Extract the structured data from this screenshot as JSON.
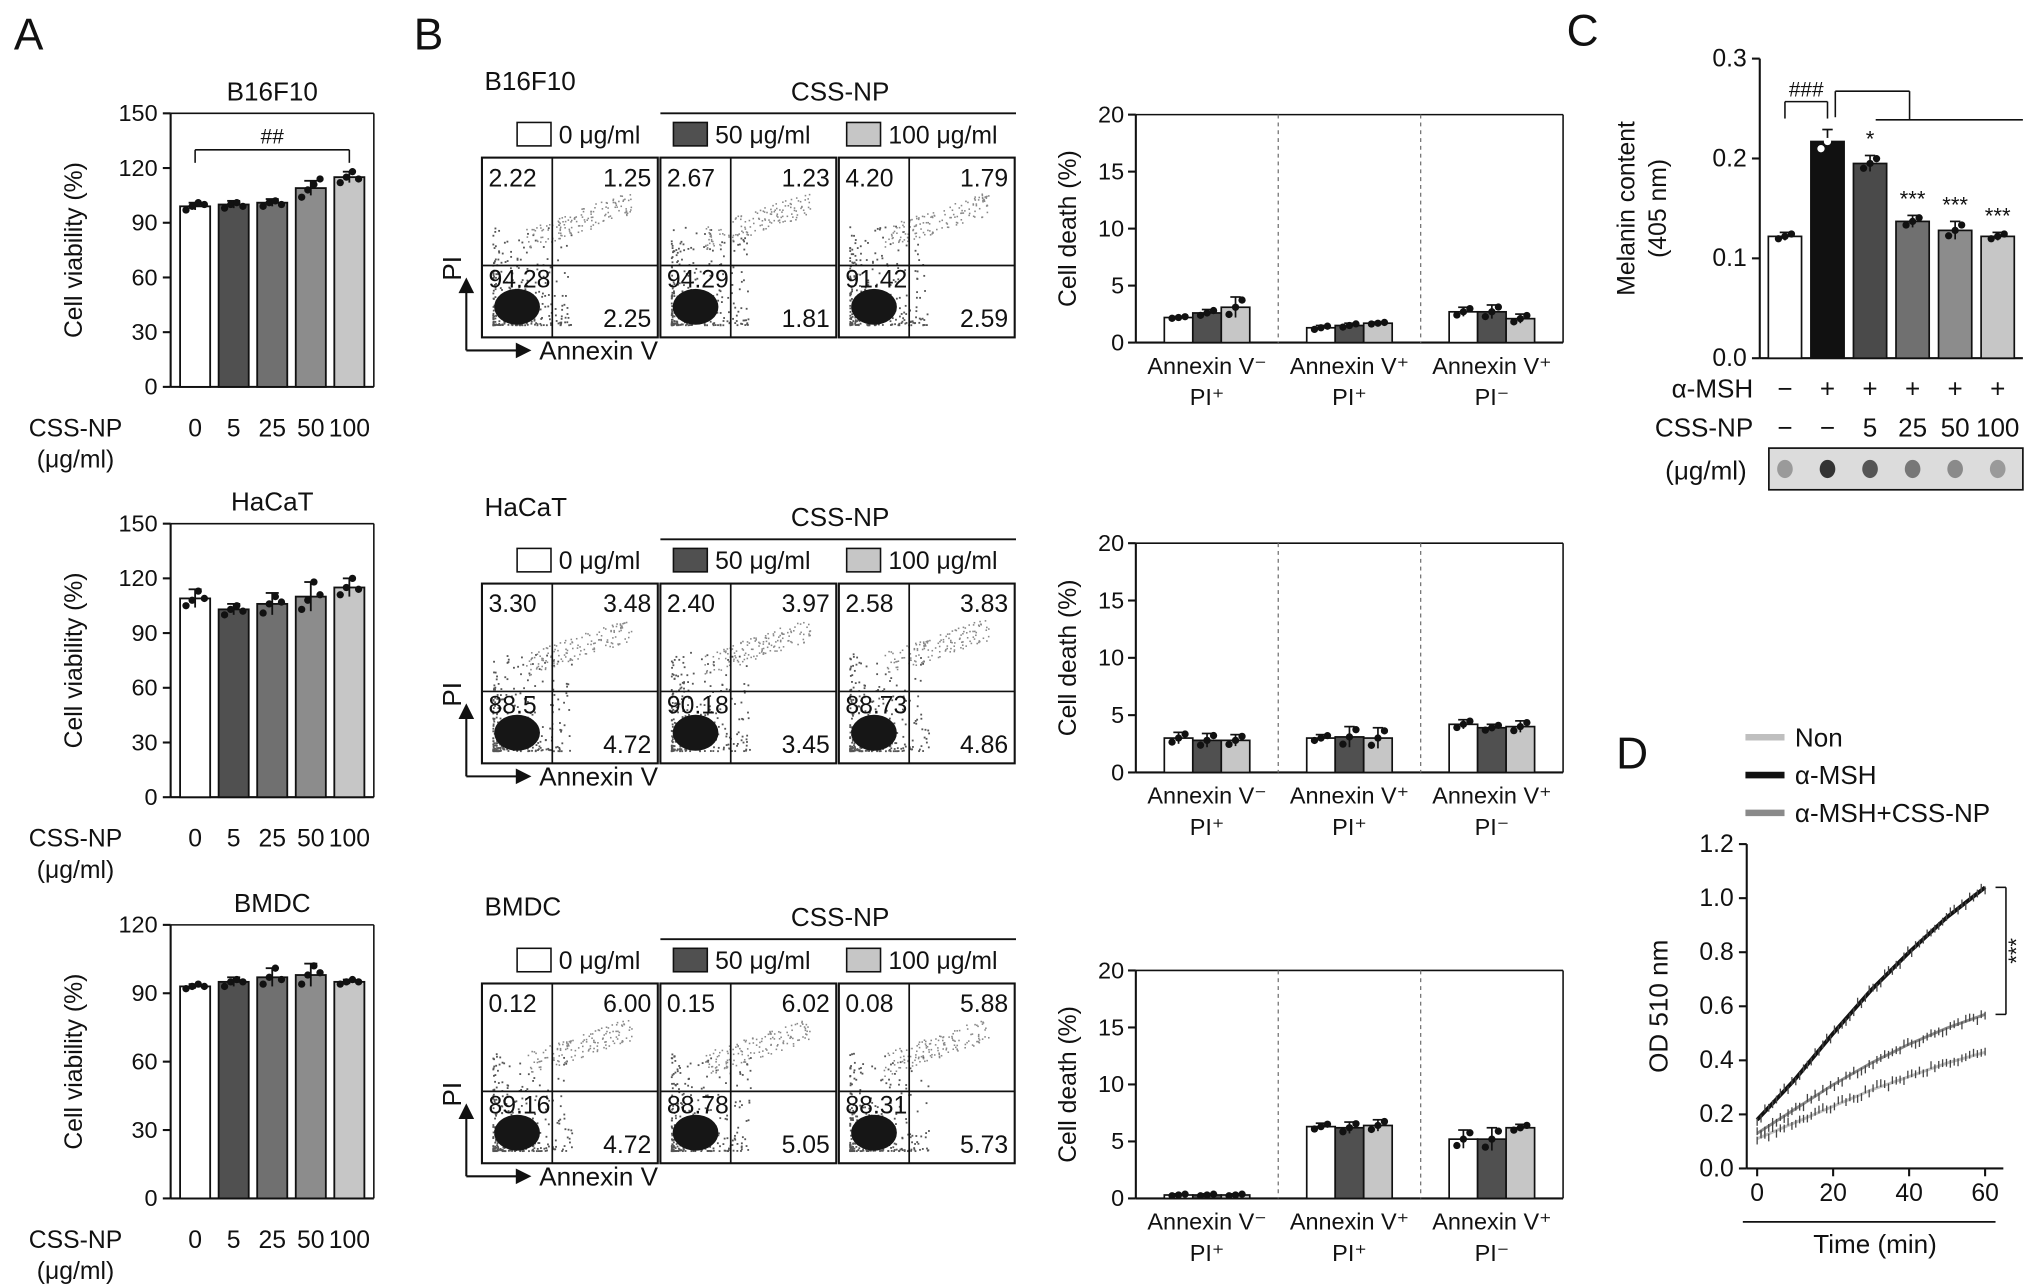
{
  "panels": {
    "A": "A",
    "B": "B",
    "C": "C",
    "D": "D"
  },
  "colors": {
    "c0": "#ffffff",
    "c5": "#505050",
    "c25": "#707070",
    "c50": "#8c8c8c",
    "c100": "#c6c6c6",
    "black": "#111111",
    "line_non": "#bfbfbf",
    "line_msh": "#111111",
    "line_cssnp": "#8a8a8a"
  },
  "chart_data": [
    {
      "id": "A1",
      "type": "bar",
      "title": "B16F10",
      "ylabel": "Cell viability (%)",
      "ylim": [
        0,
        150
      ],
      "yticks": [
        0,
        30,
        60,
        90,
        120,
        150
      ],
      "xlabel_lines": [
        "CSS-NP",
        "(μg/ml)"
      ],
      "categories": [
        "0",
        "5",
        "25",
        "50",
        "100"
      ],
      "values": [
        99,
        100,
        101,
        109,
        115
      ],
      "errors": [
        2,
        2,
        2,
        4,
        3
      ],
      "points": [
        [
          97,
          99,
          101,
          100
        ],
        [
          98,
          100,
          101,
          99
        ],
        [
          99,
          101,
          102,
          100
        ],
        [
          104,
          108,
          111,
          114
        ],
        [
          112,
          115,
          118,
          114
        ]
      ],
      "annotations": [
        {
          "text": "##",
          "from": 0,
          "to": 4
        }
      ]
    },
    {
      "id": "A2",
      "type": "bar",
      "title": "HaCaT",
      "ylabel": "Cell viability (%)",
      "ylim": [
        0,
        150
      ],
      "yticks": [
        0,
        30,
        60,
        90,
        120,
        150
      ],
      "xlabel_lines": [
        "CSS-NP",
        "(μg/ml)"
      ],
      "categories": [
        "0",
        "5",
        "25",
        "50",
        "100"
      ],
      "values": [
        109,
        103,
        106,
        110,
        115
      ],
      "errors": [
        5,
        3,
        6,
        8,
        5
      ],
      "points": [
        [
          105,
          108,
          113,
          109
        ],
        [
          100,
          103,
          105,
          102
        ],
        [
          101,
          106,
          110,
          107
        ],
        [
          103,
          108,
          118,
          111
        ],
        [
          111,
          115,
          120,
          114
        ]
      ],
      "annotations": []
    },
    {
      "id": "A3",
      "type": "bar",
      "title": "BMDC",
      "ylabel": "Cell viability (%)",
      "ylim": [
        0,
        120
      ],
      "yticks": [
        0,
        30,
        60,
        90,
        120
      ],
      "xlabel_lines": [
        "CSS-NP",
        "(μg/ml)"
      ],
      "categories": [
        "0",
        "5",
        "25",
        "50",
        "100"
      ],
      "values": [
        93,
        95,
        97,
        98,
        95
      ],
      "errors": [
        1,
        2,
        4,
        5,
        1
      ],
      "points": [
        [
          92,
          93,
          94,
          93
        ],
        [
          93,
          95,
          96,
          95
        ],
        [
          94,
          97,
          101,
          96
        ],
        [
          94,
          98,
          102,
          99
        ],
        [
          94,
          95,
          96,
          95
        ]
      ],
      "annotations": []
    },
    {
      "id": "B1",
      "type": "bar",
      "ylabel": "Cell death (%)",
      "ylim": [
        0,
        20
      ],
      "yticks": [
        0,
        5,
        10,
        15,
        20
      ],
      "groups": [
        [
          "Annexin V⁻",
          "PI⁺"
        ],
        [
          "Annexin V⁺",
          "PI⁺"
        ],
        [
          "Annexin V⁺",
          "PI⁻"
        ]
      ],
      "values": [
        [
          2.2,
          2.6,
          3.1
        ],
        [
          1.3,
          1.5,
          1.7
        ],
        [
          2.7,
          2.7,
          2.1
        ]
      ],
      "errors": [
        [
          0.1,
          0.3,
          0.9
        ],
        [
          0.2,
          0.2,
          0.1
        ],
        [
          0.4,
          0.6,
          0.4
        ]
      ]
    },
    {
      "id": "B2",
      "type": "bar",
      "ylabel": "Cell death (%)",
      "ylim": [
        0,
        20
      ],
      "yticks": [
        0,
        5,
        10,
        15,
        20
      ],
      "groups": [
        [
          "Annexin V⁻",
          "PI⁺"
        ],
        [
          "Annexin V⁺",
          "PI⁺"
        ],
        [
          "Annexin V⁺",
          "PI⁻"
        ]
      ],
      "values": [
        [
          3.0,
          2.8,
          2.8
        ],
        [
          3.0,
          3.1,
          3.0
        ],
        [
          4.2,
          3.9,
          4.0
        ]
      ],
      "errors": [
        [
          0.5,
          0.6,
          0.5
        ],
        [
          0.3,
          0.9,
          0.9
        ],
        [
          0.4,
          0.3,
          0.5
        ]
      ]
    },
    {
      "id": "B3",
      "type": "bar",
      "ylabel": "Cell death (%)",
      "ylim": [
        0,
        20
      ],
      "yticks": [
        0,
        5,
        10,
        15,
        20
      ],
      "groups": [
        [
          "Annexin V⁻",
          "PI⁺"
        ],
        [
          "Annexin V⁺",
          "PI⁺"
        ],
        [
          "Annexin V⁺",
          "PI⁻"
        ]
      ],
      "values": [
        [
          0.3,
          0.3,
          0.3
        ],
        [
          6.3,
          6.2,
          6.4
        ],
        [
          5.2,
          5.2,
          6.2
        ]
      ],
      "errors": [
        [
          0.1,
          0.1,
          0.1
        ],
        [
          0.3,
          0.5,
          0.5
        ],
        [
          0.8,
          1.0,
          0.3
        ]
      ]
    },
    {
      "id": "C",
      "type": "bar",
      "ylabel_lines": [
        "Melanin content",
        "(405 nm)"
      ],
      "ylim": [
        0,
        0.3
      ],
      "yticks": [
        "0.0",
        "0.1",
        "0.2",
        "0.3"
      ],
      "values": [
        0.122,
        0.217,
        0.195,
        0.137,
        0.128,
        0.122
      ],
      "errors": [
        0.004,
        0.012,
        0.008,
        0.006,
        0.009,
        0.004
      ],
      "stars": [
        "",
        "",
        "*",
        "***",
        "***",
        "***"
      ],
      "annotation_top": "###",
      "rows": [
        {
          "label": "α-MSH",
          "values": [
            "−",
            "+",
            "+",
            "+",
            "+",
            "+"
          ]
        },
        {
          "label": "CSS-NP",
          "values": [
            "−",
            "−",
            "5",
            "25",
            "50",
            "100"
          ]
        }
      ],
      "unit_label": "(μg/ml)"
    },
    {
      "id": "D",
      "type": "line",
      "xlabel": "Time (min)",
      "ylabel": "OD 510 nm",
      "xlim": [
        0,
        60
      ],
      "xticks": [
        0,
        20,
        40,
        60
      ],
      "ylim": [
        0,
        1.2
      ],
      "yticks": [
        "0.0",
        "0.2",
        "0.4",
        "0.6",
        "0.8",
        "1.0",
        "1.2"
      ],
      "legend": [
        "Non",
        "α-MSH",
        "α-MSH+CSS-NP"
      ],
      "series": [
        {
          "name": "α-MSH",
          "x": [
            0,
            10,
            20,
            30,
            40,
            50,
            60
          ],
          "y": [
            0.18,
            0.33,
            0.5,
            0.66,
            0.8,
            0.93,
            1.04
          ]
        },
        {
          "name": "α-MSH+CSS-NP",
          "x": [
            0,
            10,
            20,
            30,
            40,
            50,
            60
          ],
          "y": [
            0.13,
            0.22,
            0.31,
            0.39,
            0.46,
            0.52,
            0.57
          ]
        },
        {
          "name": "Non",
          "x": [
            0,
            10,
            20,
            30,
            40,
            50,
            60
          ],
          "y": [
            0.11,
            0.17,
            0.23,
            0.29,
            0.34,
            0.39,
            0.43
          ]
        }
      ],
      "significance": "***"
    }
  ],
  "flow": [
    {
      "id": "F1",
      "cell": "B16F10",
      "group_label": "CSS-NP",
      "legend": [
        "0 μg/ml",
        "50 μg/ml",
        "100 μg/ml"
      ],
      "quadrants": [
        [
          "2.22",
          "1.25",
          "94.28",
          "2.25"
        ],
        [
          "2.67",
          "1.23",
          "94.29",
          "1.81"
        ],
        [
          "4.20",
          "1.79",
          "91.42",
          "2.59"
        ]
      ],
      "ylabel": "PI",
      "xlabel": "Annexin V"
    },
    {
      "id": "F2",
      "cell": "HaCaT",
      "group_label": "CSS-NP",
      "legend": [
        "0 μg/ml",
        "50 μg/ml",
        "100 μg/ml"
      ],
      "quadrants": [
        [
          "3.30",
          "3.48",
          "88.5",
          "4.72"
        ],
        [
          "2.40",
          "3.97",
          "90.18",
          "3.45"
        ],
        [
          "2.58",
          "3.83",
          "88.73",
          "4.86"
        ]
      ],
      "ylabel": "PI",
      "xlabel": "Annexin V"
    },
    {
      "id": "F3",
      "cell": "BMDC",
      "group_label": "CSS-NP",
      "legend": [
        "0 μg/ml",
        "50 μg/ml",
        "100 μg/ml"
      ],
      "quadrants": [
        [
          "0.12",
          "6.00",
          "89.16",
          "4.72"
        ],
        [
          "0.15",
          "6.02",
          "88.78",
          "5.05"
        ],
        [
          "0.08",
          "5.88",
          "88.31",
          "5.73"
        ]
      ],
      "ylabel": "PI",
      "xlabel": "Annexin V"
    }
  ]
}
